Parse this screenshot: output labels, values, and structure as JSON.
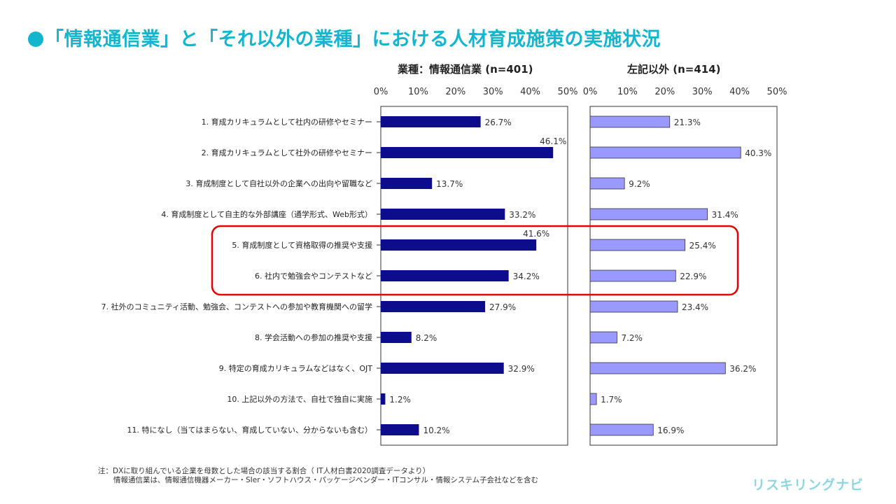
{
  "page": {
    "title": "「情報通信業」と「それ以外の業種」における人材育成施策の実施状況",
    "notes": [
      "注：DXに取り組んでいる企業を母数とした場合の該当する割合（ IT人材白書2020調査データより）",
      "情報通信業は、情報通信機器メーカー・SIer・ソフトハウス・パッケージベンダー・ITコンサル・情報システム子会社などを含む"
    ],
    "logo": "リスキリングナビ"
  },
  "colors": {
    "title": "#13b5cf",
    "series1_bar": "#0c0c8c",
    "series2_bar": "#9999ff",
    "highlight": "#e60000",
    "logo": "#8ed6e2"
  },
  "chart_data": {
    "type": "bar",
    "orientation": "horizontal",
    "categories": [
      "1. 育成カリキュラムとして社内の研修やセミナー",
      "2. 育成カリキュラムとして社外の研修やセミナー",
      "3. 育成制度として自社以外の企業への出向や留職など",
      "4. 育成制度として自主的な外部講座（通学形式、Web形式）",
      "5. 育成制度として資格取得の推奨や支援",
      "6. 社内で勉強会やコンテストなど",
      "7. 社外のコミュニティ活動、勉強会、コンテストへの参加や教育機関への留学",
      "8. 学会活動への参加の推奨や支援",
      "9. 特定の育成カリキュラムなどはなく、OJT",
      "10. 上記以外の方法で、自社で独自に実施",
      "11. 特になし（当てはまらない、育成していない、分からないも含む）"
    ],
    "series": [
      {
        "name": "業種：情報通信業 (n=401)",
        "values": [
          26.7,
          46.1,
          13.7,
          33.2,
          41.6,
          34.2,
          27.9,
          8.2,
          32.9,
          1.2,
          10.2
        ],
        "labels": [
          "26.7%",
          "46.1%",
          "13.7%",
          "33.2%",
          "41.6%",
          "34.2%",
          "27.9%",
          "8.2%",
          "32.9%",
          "1.2%",
          "10.2%"
        ]
      },
      {
        "name": "左記以外 (n=414)",
        "values": [
          21.3,
          40.3,
          9.2,
          31.4,
          25.4,
          22.9,
          23.4,
          7.2,
          36.2,
          1.7,
          16.9
        ],
        "labels": [
          "21.3%",
          "40.3%",
          "9.2%",
          "31.4%",
          "25.4%",
          "22.9%",
          "23.4%",
          "7.2%",
          "36.2%",
          "1.7%",
          "16.9%"
        ]
      }
    ],
    "xlim": [
      0,
      50
    ],
    "x_ticks": [
      "0%",
      "10%",
      "20%",
      "30%",
      "40%",
      "50%"
    ],
    "highlighted_categories": [
      4,
      5
    ]
  }
}
